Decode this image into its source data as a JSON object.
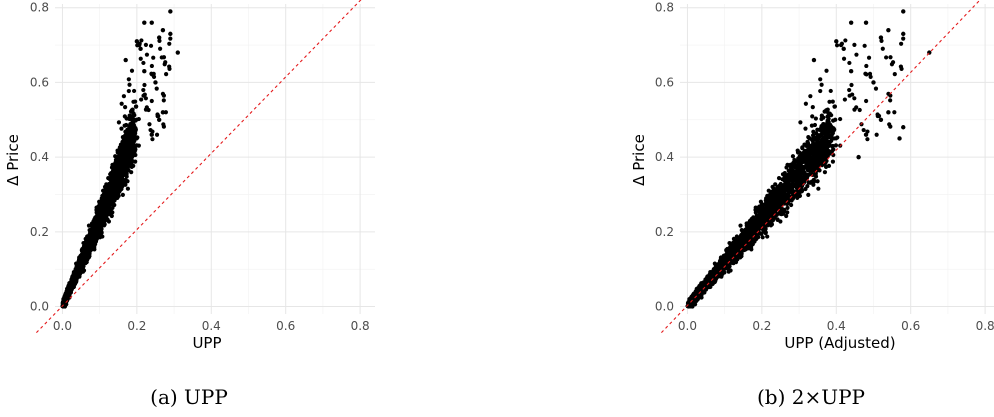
{
  "chart_data": [
    {
      "type": "scatter",
      "caption": "(a) UPP",
      "xlabel": "UPP",
      "ylabel": "Δ Price",
      "xlim": [
        -0.02,
        0.84
      ],
      "ylim": [
        -0.02,
        0.81
      ],
      "x_ticks": [
        "0.0",
        "0.2",
        "0.4",
        "0.6",
        "0.8"
      ],
      "y_ticks": [
        "0.0",
        "0.2",
        "0.4",
        "0.6",
        "0.8"
      ],
      "grid": true,
      "reference_line": {
        "slope": 1,
        "intercept": 0,
        "color": "#e41a1c",
        "style": "dashed"
      },
      "point_color": "#000000",
      "notable_points": [
        {
          "x": 0.29,
          "y": 0.79
        },
        {
          "x": 0.24,
          "y": 0.76
        },
        {
          "x": 0.22,
          "y": 0.76
        },
        {
          "x": 0.27,
          "y": 0.74
        },
        {
          "x": 0.29,
          "y": 0.73
        },
        {
          "x": 0.26,
          "y": 0.72
        },
        {
          "x": 0.31,
          "y": 0.68
        },
        {
          "x": 0.2,
          "y": 0.71
        },
        {
          "x": 0.21,
          "y": 0.69
        },
        {
          "x": 0.17,
          "y": 0.66
        },
        {
          "x": 0.22,
          "y": 0.63
        },
        {
          "x": 0.25,
          "y": 0.6
        },
        {
          "x": 0.27,
          "y": 0.52
        },
        {
          "x": 0.26,
          "y": 0.5
        },
        {
          "x": 0.24,
          "y": 0.46
        }
      ]
    },
    {
      "type": "scatter",
      "caption": "(b) 2×UPP",
      "xlabel": "UPP (Adjusted)",
      "ylabel": "Δ Price",
      "xlim": [
        -0.02,
        0.84
      ],
      "ylim": [
        -0.02,
        0.81
      ],
      "x_ticks": [
        "0.0",
        "0.2",
        "0.4",
        "0.6",
        "0.8"
      ],
      "y_ticks": [
        "0.0",
        "0.2",
        "0.4",
        "0.6",
        "0.8"
      ],
      "grid": true,
      "reference_line": {
        "slope": 1,
        "intercept": 0,
        "color": "#e41a1c",
        "style": "dashed"
      },
      "point_color": "#000000",
      "notable_points": [
        {
          "x": 0.58,
          "y": 0.79
        },
        {
          "x": 0.48,
          "y": 0.76
        },
        {
          "x": 0.44,
          "y": 0.76
        },
        {
          "x": 0.54,
          "y": 0.74
        },
        {
          "x": 0.58,
          "y": 0.73
        },
        {
          "x": 0.52,
          "y": 0.72
        },
        {
          "x": 0.65,
          "y": 0.68
        },
        {
          "x": 0.4,
          "y": 0.71
        },
        {
          "x": 0.42,
          "y": 0.69
        },
        {
          "x": 0.34,
          "y": 0.66
        },
        {
          "x": 0.44,
          "y": 0.63
        },
        {
          "x": 0.5,
          "y": 0.6
        },
        {
          "x": 0.54,
          "y": 0.52
        },
        {
          "x": 0.52,
          "y": 0.5
        },
        {
          "x": 0.58,
          "y": 0.48
        },
        {
          "x": 0.57,
          "y": 0.45
        },
        {
          "x": 0.48,
          "y": 0.46
        },
        {
          "x": 0.46,
          "y": 0.4
        }
      ]
    }
  ]
}
